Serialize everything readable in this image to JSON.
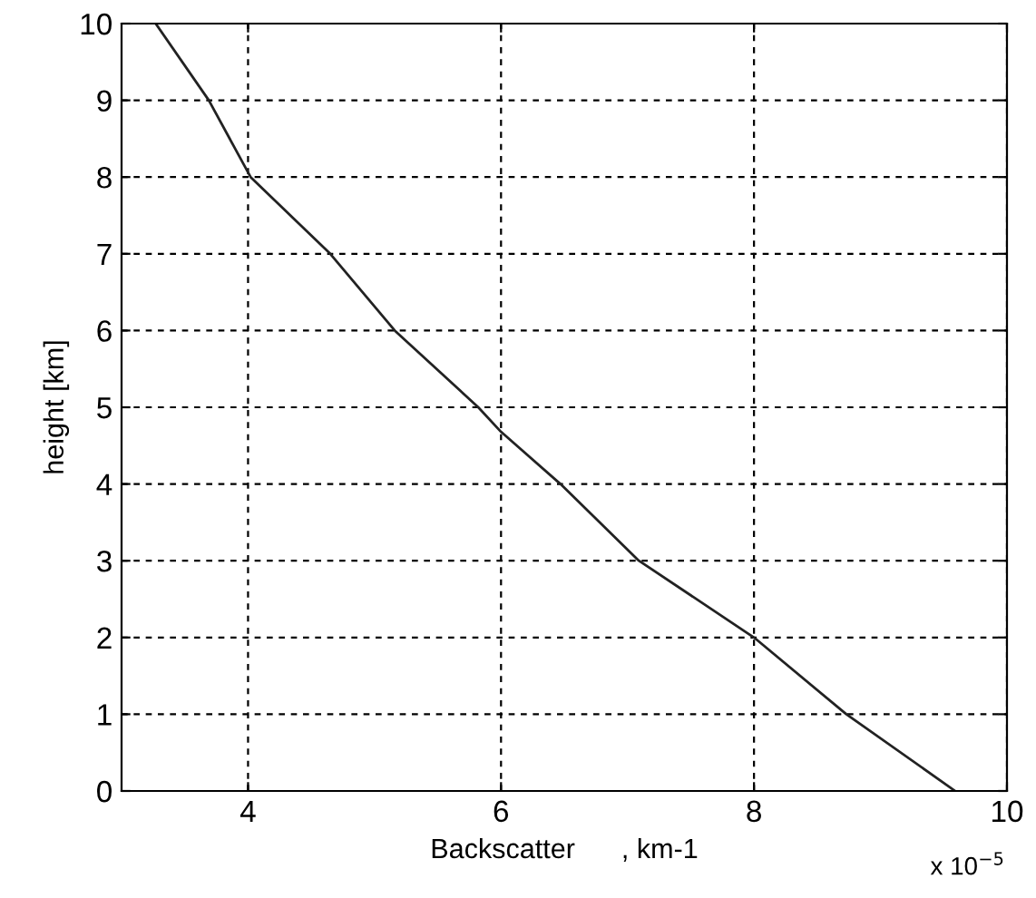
{
  "chart_data": {
    "type": "line",
    "xlabel": "Backscatter      , km-1",
    "ylabel": "height [km]",
    "annotations": [
      "x 10$^{−5}$"
    ],
    "series": [
      {
        "color": "#222222",
        "x": [
          3.27,
          3.69,
          4.02,
          4.65,
          5.16,
          5.82,
          6.0,
          6.47,
          7.09,
          8.0,
          8.73,
          9.59
        ],
        "values": [
          10,
          9,
          8,
          7,
          6,
          5,
          4.68,
          4,
          3,
          2,
          1,
          0
        ]
      }
    ],
    "xlim": [
      3,
      10
    ],
    "xticks": [
      4,
      6,
      8,
      10
    ],
    "ylim": [
      0,
      10
    ],
    "yticks": [
      0,
      1,
      2,
      3,
      4,
      5,
      6,
      7,
      8,
      9,
      10
    ],
    "grid": true,
    "line_style": "solid"
  }
}
